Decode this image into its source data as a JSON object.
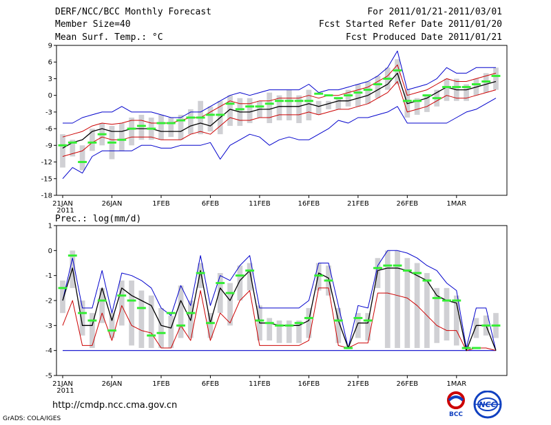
{
  "header": {
    "title": "DERF/NCC/BCC Monthly Forecast",
    "member_size": "Member Size=40",
    "variable": "Mean Surf. Temp.: °C",
    "period": "For 2011/01/21-2011/03/01",
    "started": "Fcst Started Refer Date 2011/01/20",
    "produced": "Fcst Produced Date 2011/01/21"
  },
  "footer": {
    "url": "http://cmdp.ncc.cma.gov.cn",
    "grads": "GrADS: COLA/IGES",
    "logo_bcc": "BCC",
    "logo_ncc": "NCC"
  },
  "colors": {
    "box": "#d0d0d4",
    "mean": "#000000",
    "spread": "#cc0000",
    "envelope": "#0000cc",
    "median": "#33ee33"
  },
  "chart_data": [
    {
      "type": "line",
      "title": "Mean Surf. Temp.: °C",
      "xlabel": "",
      "ylabel": "",
      "ylim": [
        -18,
        9
      ],
      "yticks": [
        9,
        6,
        3,
        0,
        -3,
        -6,
        -9,
        -12,
        -15,
        -18
      ],
      "x_tick_labels": [
        "21JAN",
        "26JAN",
        "1FEB",
        "6FEB",
        "11FEB",
        "16FEB",
        "21FEB",
        "26FEB",
        "1MAR"
      ],
      "x_tick_sub": "2011",
      "series": [
        {
          "name": "max",
          "values": [
            -5,
            -5,
            -4,
            -3.5,
            -3,
            -3,
            -2,
            -3,
            -3,
            -3,
            -3.5,
            -4,
            -4,
            -3,
            -3,
            -2,
            -1,
            0,
            0.5,
            0,
            0.5,
            1,
            1,
            1,
            1,
            2,
            0.5,
            1,
            1,
            1.5,
            2,
            2.5,
            3.5,
            5,
            8,
            1,
            1.5,
            2,
            3,
            5,
            4,
            4,
            5,
            5,
            5
          ]
        },
        {
          "name": "upper",
          "values": [
            -7.5,
            -7,
            -6.5,
            -5.5,
            -5,
            -5.2,
            -5,
            -4.5,
            -4.5,
            -5,
            -5,
            -5,
            -4.5,
            -4,
            -4,
            -3,
            -2,
            -1,
            -1.5,
            -1.5,
            -1,
            -1,
            -0.5,
            -0.5,
            -0.5,
            0,
            -0.5,
            0,
            0,
            0.5,
            1,
            1.5,
            2.5,
            3.5,
            5.5,
            0,
            0.5,
            1,
            2,
            3,
            2.5,
            2.5,
            3,
            3.5,
            4
          ]
        },
        {
          "name": "mean",
          "values": [
            -9.5,
            -8.5,
            -8,
            -6.5,
            -6,
            -6.5,
            -6.5,
            -6,
            -6,
            -6,
            -6.5,
            -6.5,
            -6.5,
            -5.5,
            -5,
            -5.5,
            -4,
            -2.5,
            -3,
            -3,
            -2.5,
            -2.5,
            -2,
            -2,
            -2,
            -1.5,
            -2,
            -1.5,
            -1,
            -1,
            -0.5,
            0,
            1,
            2,
            4,
            -1.5,
            -1,
            -0.5,
            0.5,
            1.5,
            1,
            1,
            1.5,
            2,
            2.5
          ]
        },
        {
          "name": "lower",
          "values": [
            -11,
            -10.5,
            -10,
            -8.5,
            -7.5,
            -8,
            -8,
            -7.5,
            -7.5,
            -7.5,
            -8,
            -8,
            -8,
            -7,
            -6.5,
            -7,
            -5.5,
            -4,
            -4.5,
            -4.5,
            -4,
            -4,
            -3.5,
            -3.5,
            -3.5,
            -3,
            -3.5,
            -3,
            -2.5,
            -2.5,
            -2,
            -1.5,
            -0.5,
            0.5,
            2.5,
            -3,
            -2.5,
            -2,
            -1,
            0,
            -0.5,
            -0.5,
            0,
            0.5,
            1
          ]
        },
        {
          "name": "min",
          "values": [
            -15,
            -13,
            -14,
            -11,
            -10,
            -10,
            -10,
            -10,
            -9,
            -9,
            -9.5,
            -9.5,
            -9,
            -9,
            -9,
            -8.5,
            -11.5,
            -9,
            -8,
            -7,
            -7.5,
            -9,
            -8,
            -7.5,
            -8,
            -8,
            -7,
            -6,
            -4.5,
            -5,
            -4,
            -4,
            -3.5,
            -3,
            -2,
            -5,
            -5,
            -5,
            -5,
            -5,
            -4,
            -3,
            -2.5,
            -1.5,
            -0.5
          ]
        },
        {
          "name": "median",
          "values": [
            -9,
            -8.5,
            -12,
            -8.5,
            -7,
            -8.5,
            -8,
            -6,
            -5.5,
            -6,
            -5,
            -5,
            -4.5,
            -4,
            -4,
            -3.5,
            -3.5,
            -1.5,
            -2.5,
            -2,
            -2,
            -1.5,
            -1,
            -1,
            -1,
            -1,
            0.3,
            0,
            -0.5,
            0,
            0.5,
            1,
            2,
            3,
            4.5,
            -1,
            -1,
            0,
            -0.5,
            1.5,
            1.5,
            1.5,
            2,
            2.5,
            3.5
          ]
        },
        {
          "name": "box_top",
          "values": [
            -7,
            -8,
            -9,
            -6,
            -5,
            -5.5,
            -5,
            -4,
            -3.5,
            -4,
            -3.5,
            -4,
            -3.5,
            -2.5,
            -1,
            -2,
            -1,
            0,
            -0.5,
            -0.5,
            -1,
            0.5,
            0,
            1,
            0,
            1,
            -1,
            -1,
            -0.5,
            1,
            2,
            2.5,
            3.5,
            5,
            6.5,
            1,
            -0.5,
            0,
            1,
            3,
            3,
            2,
            3,
            4,
            5
          ]
        },
        {
          "name": "box_bottom",
          "values": [
            -13,
            -11,
            -13.5,
            -10,
            -9,
            -11.5,
            -10,
            -9,
            -8,
            -8,
            -8,
            -7.5,
            -8,
            -7,
            -7,
            -6.5,
            -7,
            -5.5,
            -5.5,
            -5,
            -4,
            -5,
            -4.5,
            -4.5,
            -5,
            -4.5,
            -3.5,
            -2.5,
            -2.5,
            -2,
            -2,
            -1.5,
            -0.5,
            1,
            2,
            -4,
            -3.5,
            -3,
            -2,
            -1,
            -1,
            -1,
            0,
            0.5,
            1
          ]
        }
      ]
    },
    {
      "type": "line",
      "title": "Prec.: log(mm/d)",
      "xlabel": "",
      "ylabel": "",
      "ylim": [
        -5,
        1
      ],
      "yticks": [
        1,
        0,
        -1,
        -2,
        -3,
        -4,
        -5
      ],
      "x_tick_labels": [
        "21JAN",
        "26JAN",
        "1FEB",
        "6FEB",
        "11FEB",
        "16FEB",
        "21FEB",
        "26FEB",
        "1MAR"
      ],
      "x_tick_sub": "2011",
      "series": [
        {
          "name": "max",
          "values": [
            -2,
            -0.3,
            -2.3,
            -2.3,
            -0.8,
            -2.5,
            -0.9,
            -1,
            -1.2,
            -1.5,
            -2.3,
            -2.6,
            -1.4,
            -2.2,
            -0.2,
            -2.2,
            -1,
            -1.2,
            -0.6,
            -0.2,
            -2.3,
            -2.3,
            -2.3,
            -2.3,
            -2.3,
            -2,
            -0.5,
            -0.5,
            -2.2,
            -3.9,
            -2.2,
            -2.3,
            -0.6,
            0,
            0,
            -0.1,
            -0.3,
            -0.6,
            -0.8,
            -1.3,
            -1.6,
            -3.9,
            -2.3,
            -2.3,
            -4
          ]
        },
        {
          "name": "mean",
          "values": [
            -2,
            -0.7,
            -3,
            -3,
            -1.5,
            -2.8,
            -1.5,
            -1.8,
            -2,
            -2.2,
            -3,
            -3.1,
            -2,
            -2.8,
            -0.8,
            -2.9,
            -1.5,
            -2,
            -1.2,
            -0.8,
            -2.9,
            -2.9,
            -3,
            -3,
            -3,
            -2.8,
            -0.9,
            -1.1,
            -2.8,
            -3.9,
            -2.9,
            -2.9,
            -0.8,
            -0.7,
            -0.7,
            -0.8,
            -1,
            -1.2,
            -1.8,
            -2,
            -2.1,
            -4,
            -3,
            -3,
            -4
          ]
        },
        {
          "name": "low",
          "values": [
            -3,
            -2,
            -3.8,
            -3.8,
            -2.5,
            -3.6,
            -2.2,
            -3,
            -3.2,
            -3.3,
            -3.9,
            -3.9,
            -3,
            -3.6,
            -1.6,
            -3.6,
            -2.5,
            -2.9,
            -2,
            -1.6,
            -3.8,
            -3.8,
            -3.8,
            -3.8,
            -3.8,
            -3.6,
            -1.5,
            -1.5,
            -3.8,
            -3.9,
            -3.7,
            -3.7,
            -1.7,
            -1.7,
            -1.8,
            -1.9,
            -2.2,
            -2.6,
            -3,
            -3.2,
            -3.2,
            -4,
            -3.9,
            -3.9,
            -4
          ]
        },
        {
          "name": "min",
          "values": [
            -4,
            -4,
            -4,
            -4,
            -4,
            -4,
            -4,
            -4,
            -4,
            -4,
            -4,
            -4,
            -4,
            -4,
            -4,
            -4,
            -4,
            -4,
            -4,
            -4,
            -4,
            -4,
            -4,
            -4,
            -4,
            -4,
            -4,
            -4,
            -4,
            -4,
            -4,
            -4,
            -4,
            -4,
            -4,
            -4,
            -4,
            -4,
            -4,
            -4,
            -4,
            -4,
            -4,
            -4,
            -4
          ]
        },
        {
          "name": "median",
          "values": [
            -1.5,
            -0.2,
            -2.5,
            -2.8,
            -2,
            -3.2,
            -1.8,
            -2,
            -2.3,
            -3.4,
            -3.3,
            -2.5,
            -3,
            -2.5,
            -0.9,
            -2.9,
            -1.3,
            -1.7,
            -1,
            -0.8,
            -2.8,
            -2.9,
            -3,
            -3,
            -2.9,
            -2.7,
            -1,
            -1.2,
            -2.8,
            -3.9,
            -2.7,
            -2.8,
            -0.7,
            -0.6,
            -0.6,
            -0.8,
            -0.9,
            -1.2,
            -1.9,
            -2,
            -2,
            -3.9,
            -3.9,
            -3,
            -3
          ]
        },
        {
          "name": "box_top",
          "values": [
            -1.2,
            0,
            -2,
            -2.5,
            -1.5,
            -2.5,
            -1.2,
            -1.2,
            -1.6,
            -1.8,
            -2.3,
            -2.6,
            -1.4,
            -2,
            -0.5,
            -2.5,
            -0.9,
            -1.3,
            -0.6,
            -0.5,
            -2.2,
            -2.7,
            -2.8,
            -2.8,
            -2.8,
            -2.3,
            -0.5,
            -0.6,
            -2.3,
            -3.8,
            -2.5,
            -2.5,
            -0.3,
            0,
            0,
            -0.3,
            -0.5,
            -0.9,
            -1.5,
            -1.5,
            -1.8,
            -3.8,
            -2.7,
            -2.6,
            -2.5
          ]
        },
        {
          "name": "box_bottom",
          "values": [
            -2.5,
            -1.5,
            -3.4,
            -3.9,
            -2.9,
            -3.5,
            -3,
            -3.8,
            -3.9,
            -3.9,
            -3.9,
            -3.9,
            -3.5,
            -3.5,
            -1.5,
            -3.5,
            -2.5,
            -3,
            -2,
            -1.6,
            -3.6,
            -3.6,
            -3.7,
            -3.7,
            -3.7,
            -3.5,
            -1.6,
            -1.8,
            -3.7,
            -3.95,
            -3.5,
            -3.6,
            -1.5,
            -3.9,
            -3.9,
            -3.9,
            -3.9,
            -3.9,
            -3.7,
            -3.6,
            -3.8,
            -3.95,
            -3.5,
            -3.4,
            -3.5
          ]
        }
      ]
    }
  ]
}
